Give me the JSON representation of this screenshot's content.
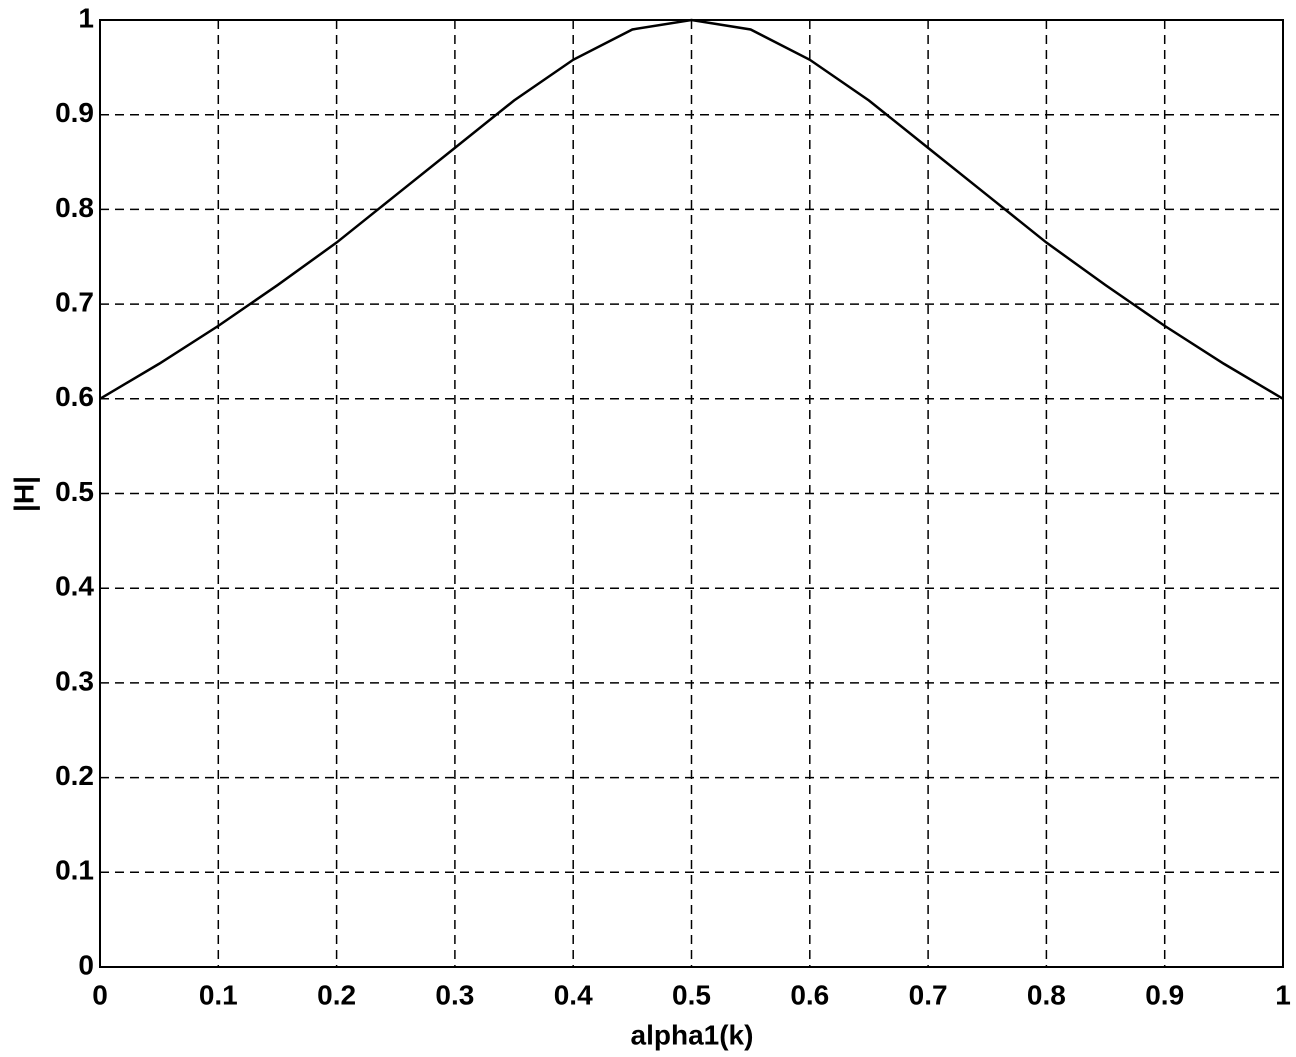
{
  "chart_data": {
    "type": "line",
    "x_label": "alpha1(k)",
    "y_label": "|H|",
    "x": [
      0,
      0.05,
      0.1,
      0.15,
      0.2,
      0.25,
      0.3,
      0.35,
      0.4,
      0.45,
      0.5,
      0.55,
      0.6,
      0.65,
      0.7,
      0.75,
      0.8,
      0.85,
      0.9,
      0.95,
      1
    ],
    "series": [
      {
        "name": "|H|",
        "color": "#000000",
        "values": [
          0.6,
          0.637,
          0.677,
          0.72,
          0.765,
          0.815,
          0.865,
          0.915,
          0.958,
          0.99,
          1,
          0.99,
          0.958,
          0.915,
          0.865,
          0.815,
          0.765,
          0.72,
          0.677,
          0.637,
          0.6
        ]
      }
    ],
    "xlim": [
      0,
      1
    ],
    "ylim": [
      0,
      1
    ],
    "xticks": [
      0,
      0.1,
      0.2,
      0.3,
      0.4,
      0.5,
      0.6,
      0.7,
      0.8,
      0.9,
      1
    ],
    "yticks": [
      0,
      0.1,
      0.2,
      0.3,
      0.4,
      0.5,
      0.6,
      0.7,
      0.8,
      0.9,
      1
    ],
    "grid": true
  }
}
